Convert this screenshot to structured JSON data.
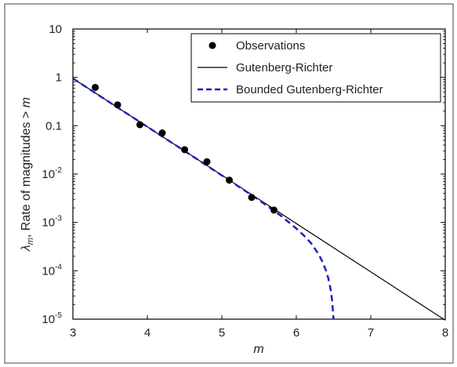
{
  "chart_data": {
    "type": "line",
    "title": "",
    "xlabel": "m",
    "ylabel_symbol": "λ",
    "ylabel_sub": "m",
    "ylabel_rest": ", Rate of magnitudes > ",
    "ylabel_var": "m",
    "xlim": [
      3,
      8
    ],
    "ylim": [
      1e-05,
      10
    ],
    "yscale": "log",
    "grid": false,
    "legend_position": "top-right",
    "x_ticks": [
      {
        "value": 3,
        "label": "3"
      },
      {
        "value": 4,
        "label": "4"
      },
      {
        "value": 5,
        "label": "5"
      },
      {
        "value": 6,
        "label": "6"
      },
      {
        "value": 7,
        "label": "7"
      },
      {
        "value": 8,
        "label": "8"
      }
    ],
    "y_ticks": [
      {
        "value": 10,
        "label": "10"
      },
      {
        "value": 1,
        "label": "1"
      },
      {
        "value": 0.1,
        "label": "0.1"
      },
      {
        "value": 0.01,
        "base": "10",
        "exp": "-2"
      },
      {
        "value": 0.001,
        "base": "10",
        "exp": "-3"
      },
      {
        "value": 0.0001,
        "base": "10",
        "exp": "-4"
      },
      {
        "value": 1e-05,
        "base": "10",
        "exp": "-5"
      }
    ],
    "series": [
      {
        "name": "Observations",
        "kind": "markers",
        "color": "#000000",
        "x": [
          3.3,
          3.6,
          3.9,
          4.2,
          4.5,
          4.8,
          5.1,
          5.4,
          5.7
        ],
        "y": [
          0.62,
          0.27,
          0.105,
          0.071,
          0.032,
          0.018,
          0.0075,
          0.0033,
          0.0018
        ]
      },
      {
        "name": "Gutenberg-Richter",
        "kind": "solid",
        "color": "#000000",
        "x": [
          3,
          8
        ],
        "y": [
          0.95,
          9.5e-06
        ]
      },
      {
        "name": "Bounded Gutenberg-Richter",
        "kind": "dashed",
        "color": "#1f1fbf",
        "x": [
          3.0,
          3.5,
          4.0,
          4.5,
          5.0,
          5.5,
          5.8,
          6.0,
          6.1,
          6.2,
          6.3,
          6.35,
          6.4,
          6.43,
          6.46,
          6.48,
          6.5
        ],
        "y": [
          0.95,
          0.3,
          0.095,
          0.03,
          0.0094,
          0.0029,
          0.00135,
          0.00075,
          0.00054,
          0.00037,
          0.00022,
          0.000155,
          0.0001,
          7e-05,
          4.2e-05,
          2.5e-05,
          1e-05
        ]
      }
    ]
  }
}
